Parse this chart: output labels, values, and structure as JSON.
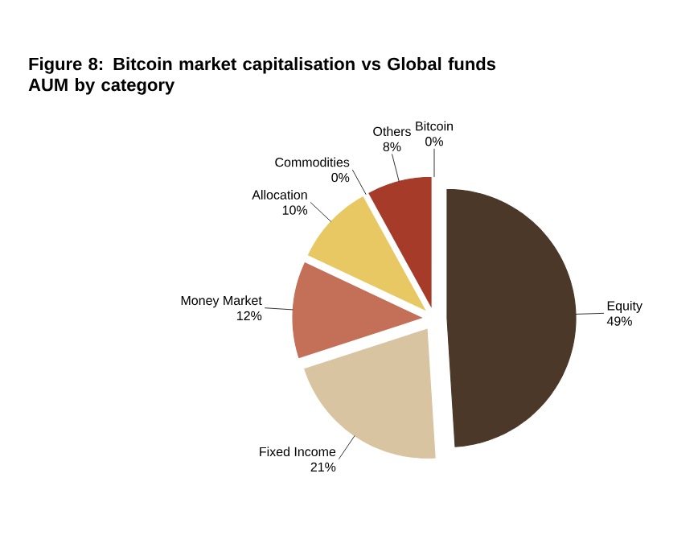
{
  "chart_data": {
    "type": "pie",
    "title": "Figure 8: Bitcoin market capitalisation vs Global funds AUM by category",
    "categories": [
      "Equity",
      "Fixed Income",
      "Money Market",
      "Allocation",
      "Commodities",
      "Others",
      "Bitcoin"
    ],
    "values": [
      49,
      21,
      12,
      10,
      0,
      8,
      0
    ],
    "value_labels": [
      "49%",
      "21%",
      "12%",
      "10%",
      "0%",
      "8%",
      "0%"
    ],
    "colors": [
      "#4b3829",
      "#d9c4a1",
      "#c46f57",
      "#e8c862",
      "#a9a9a9",
      "#a63b2a",
      "#c9a27a"
    ]
  }
}
